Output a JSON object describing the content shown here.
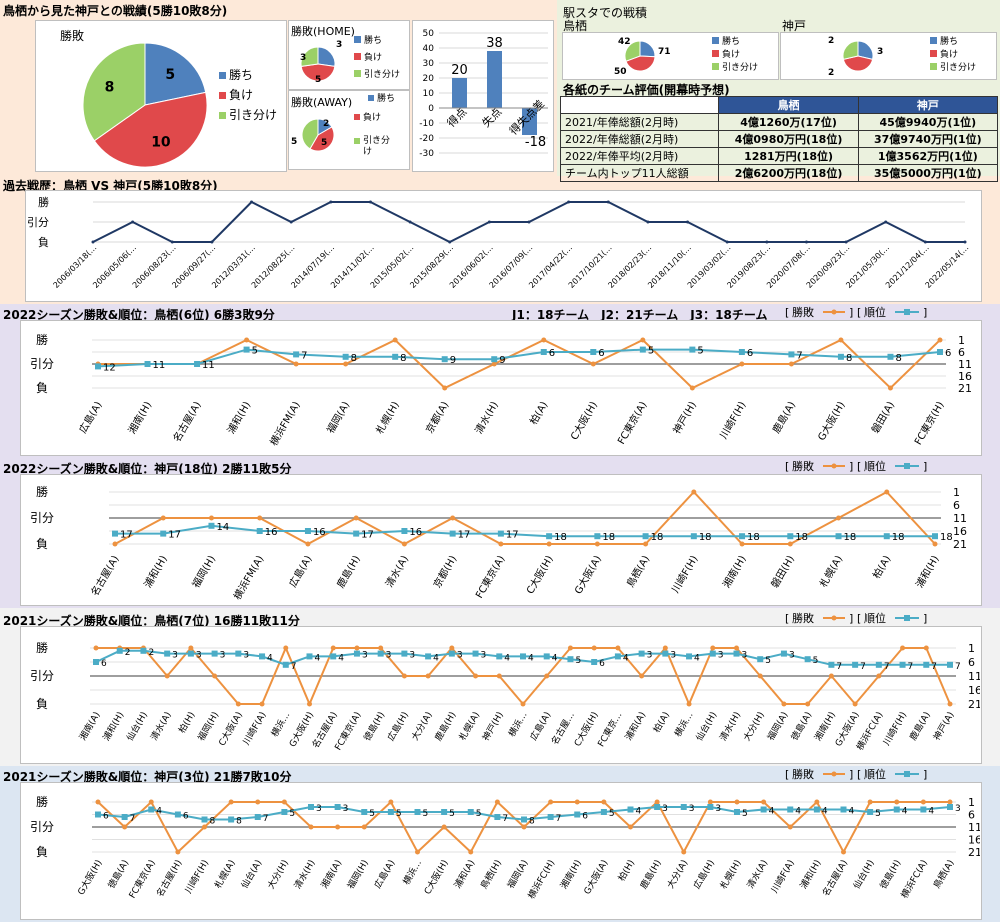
{
  "colors": {
    "win": "#4f81bd",
    "lose": "#e0494b",
    "draw": "#9bd067",
    "line_navy": "#1f3864",
    "result_orange": "#ed9240",
    "rank_teal": "#4bacc6",
    "bg_peach": "#fde9d9",
    "bg_lav": "#e4dff0",
    "bg_blue": "#dce6f2",
    "bg_gray": "#f2f2f2",
    "bg_green": "#ebf1de"
  },
  "top": {
    "title": "鳥栖から見た神戸との戦績(5勝10敗8分)",
    "main_pie": {
      "title": "勝敗",
      "values": [
        5,
        10,
        8
      ],
      "labels": [
        "勝ち",
        "負け",
        "引き分け"
      ]
    },
    "home_pie": {
      "title": "勝敗(HOME)",
      "values": [
        3,
        5,
        3
      ],
      "labels": [
        "勝ち",
        "負け",
        "引き分け"
      ]
    },
    "away_pie": {
      "title": "勝敗(AWAY)",
      "values": [
        2,
        5,
        5
      ],
      "labels": [
        "勝ち",
        "負け",
        "引き分け"
      ]
    },
    "goals_bar": {
      "categories": [
        "得点",
        "失点",
        "得失点差"
      ],
      "values": [
        20,
        38,
        -18
      ],
      "yticks": [
        "50",
        "40",
        "30",
        "20",
        "10",
        "0",
        "-10",
        "-20",
        "-30"
      ]
    }
  },
  "ekisuta": {
    "title": "駅スタでの戦積",
    "tosu": {
      "label": "鳥栖",
      "values": [
        42,
        71,
        50
      ]
    },
    "kobe": {
      "label": "神戸",
      "values": [
        2,
        3,
        2
      ]
    },
    "legend": [
      "勝ち",
      "負け",
      "引き分け"
    ]
  },
  "eval_table": {
    "title": "各紙のチーム評価(開幕時予想)",
    "headers": [
      "鳥栖",
      "神戸"
    ],
    "rows": [
      {
        "label": "2021/年俸総額(2月時)",
        "tosu": "4億1260万(17位)",
        "kobe": "45億9940万(1位)"
      },
      {
        "label": "2022/年俸総額(2月時)",
        "tosu": "4億0980万円(18位)",
        "kobe": "37億9740万円(1位)"
      },
      {
        "label": "2022/年俸平均(2月時)",
        "tosu": "1281万円(18位)",
        "kobe": "1億3562万円(1位)"
      },
      {
        "label": "チーム内トップ11人総額",
        "tosu": "2億6200万円(18位)",
        "kobe": "35億5000万円(1位)"
      }
    ]
  },
  "history": {
    "title": "過去戦歴：鳥栖 VS 神戸(5勝10敗8分)",
    "ylabels": [
      "勝",
      "引分",
      "負"
    ],
    "dates": [
      "2006/03/18(…",
      "2006/05/06(…",
      "2006/08/23(…",
      "2006/09/27(…",
      "2012/03/31(…",
      "2012/08/25(…",
      "2014/07/19(…",
      "2014/11/02(…",
      "2015/05/02(…",
      "2015/08/29(…",
      "2016/06/02(…",
      "2016/07/09(…",
      "2017/04/22(…",
      "2017/10/21(…",
      "2018/02/23(…",
      "2018/11/10(…",
      "2019/03/02(…",
      "2019/08/23(…",
      "2020/07/08(…",
      "2020/09/23(…",
      "2021/05/30(…",
      "2021/12/04(…",
      "2022/05/14(…"
    ],
    "results": [
      0,
      0.5,
      0,
      0,
      1,
      0.5,
      1,
      1,
      0.5,
      0,
      0.5,
      0.5,
      1,
      1,
      0.5,
      0.5,
      0,
      0,
      0,
      0,
      0.5,
      0,
      0
    ]
  },
  "legend_labels": {
    "result": "勝敗",
    "rank": "順位"
  },
  "season_charts": [
    {
      "title": "2022シーズン勝敗&順位：鳥栖(6位) 6勝3敗9分",
      "note": "J1：18チーム　J2：21チーム　J3：18チーム",
      "ylabels": [
        "勝",
        "引分",
        "負"
      ],
      "right_ticks": [
        "1",
        "6",
        "11",
        "16",
        "21"
      ],
      "matches": [
        "広島(A)",
        "湘南(H)",
        "名古屋(A)",
        "浦和(H)",
        "横浜FM(A)",
        "福岡(A)",
        "札幌(H)",
        "京都(A)",
        "清水(H)",
        "柏(A)",
        "C大阪(H)",
        "FC東京(A)",
        "神戸(H)",
        "川崎F(H)",
        "鹿島(A)",
        "G大阪(H)",
        "磐田(A)",
        "FC東京(H)"
      ],
      "results": [
        0.5,
        0.5,
        0.5,
        1,
        0.5,
        0.5,
        1,
        0,
        0.5,
        1,
        0.5,
        1,
        0,
        0.5,
        0.5,
        1,
        0,
        1
      ],
      "ranks": [
        12,
        11,
        11,
        5,
        7,
        8,
        8,
        9,
        9,
        6,
        6,
        5,
        5,
        6,
        7,
        8,
        8,
        6
      ]
    },
    {
      "title": "2022シーズン勝敗&順位：神戸(18位) 2勝11敗5分",
      "note": "",
      "ylabels": [
        "勝",
        "引分",
        "負"
      ],
      "right_ticks": [
        "1",
        "6",
        "11",
        "16",
        "21"
      ],
      "matches": [
        "名古屋(A)",
        "浦和(H)",
        "福岡(H)",
        "横浜FM(A)",
        "広島(A)",
        "鹿島(H)",
        "清水(A)",
        "京都(H)",
        "FC東京(A)",
        "C大阪(H)",
        "G大阪(A)",
        "鳥栖(A)",
        "川崎F(H)",
        "湘南(H)",
        "磐田(H)",
        "札幌(A)",
        "柏(A)",
        "浦和(H)"
      ],
      "results": [
        0,
        0.5,
        0.5,
        0.5,
        0,
        0.5,
        0,
        0.5,
        0,
        0,
        0,
        0,
        1,
        0,
        0,
        0.5,
        1,
        0,
        0
      ],
      "ranks": [
        17,
        17,
        14,
        16,
        16,
        17,
        16,
        17,
        17,
        18,
        18,
        18,
        18,
        18,
        18,
        18,
        18,
        18
      ]
    },
    {
      "title": "2021シーズン勝敗&順位：鳥栖(7位) 16勝11敗11分",
      "note": "",
      "ylabels": [
        "勝",
        "引分",
        "負"
      ],
      "right_ticks": [
        "1",
        "6",
        "11",
        "16",
        "21"
      ],
      "matches": [
        "湘南(A)",
        "浦和(H)",
        "仙台(H)",
        "清水(A)",
        "柏(H)",
        "福岡(H)",
        "C大阪(A)",
        "川崎F(A)",
        "横浜…",
        "G大阪(H)",
        "名古屋(A)",
        "FC東京(A)",
        "徳島(H)",
        "広島(H)",
        "大分(A)",
        "鹿島(H)",
        "札幌(A)",
        "神戸(H)",
        "横浜…",
        "広島(A)",
        "名古屋…",
        "C大阪(H)",
        "FC東京…",
        "浦和(A)",
        "柏(A)",
        "横浜…",
        "仙台(H)",
        "清水(H)",
        "大分(H)",
        "福岡(A)",
        "徳島(A)",
        "湘南(H)",
        "G大阪(A)",
        "横浜FC(A)",
        "川崎F(H)",
        "鹿島(A)",
        "神戸(A)"
      ],
      "results": [
        1,
        1,
        1,
        0.5,
        1,
        0.5,
        0,
        0,
        1,
        0,
        1,
        1,
        1,
        0.5,
        0.5,
        1,
        0.5,
        0.5,
        0,
        0.5,
        1,
        1,
        1,
        0.5,
        1,
        0,
        1,
        1,
        0.5,
        0,
        0,
        0.5,
        0,
        0.5,
        1,
        1,
        0
      ],
      "ranks": [
        6,
        2,
        2,
        3,
        3,
        3,
        3,
        4,
        7,
        4,
        4,
        3,
        3,
        3,
        4,
        3,
        3,
        4,
        4,
        4,
        5,
        6,
        4,
        3,
        3,
        4,
        3,
        3,
        5,
        3,
        5,
        7,
        7,
        7,
        7,
        7,
        7,
        7,
        7
      ]
    },
    {
      "title": "2021シーズン勝敗&順位：神戸(3位) 21勝7敗10分",
      "note": "",
      "ylabels": [
        "勝",
        "引分",
        "負"
      ],
      "right_ticks": [
        "1",
        "6",
        "11",
        "16",
        "21"
      ],
      "matches": [
        "G大阪(H)",
        "徳島(A)",
        "FC東京(A)",
        "名古屋(H)",
        "川崎F(H)",
        "札幌(A)",
        "仙台(A)",
        "大分(H)",
        "清水(H)",
        "湘南(A)",
        "福岡(H)",
        "広島(A)",
        "横浜…",
        "C大阪(H)",
        "浦和(A)",
        "鳥栖(H)",
        "福岡(A)",
        "横浜FC(H)",
        "湘南(H)",
        "G大阪(A)",
        "柏(H)",
        "鹿島(H)",
        "大分(A)",
        "広島(H)",
        "札幌(H)",
        "清水(A)",
        "川崎F(A)",
        "浦和(H)",
        "名古屋(A)",
        "仙台(H)",
        "徳島(H)",
        "横浜FC(A)",
        "鳥栖(A)"
      ],
      "results": [
        1,
        0.5,
        1,
        0,
        0.5,
        1,
        1,
        1,
        0.5,
        0.5,
        0.5,
        1,
        0,
        0.5,
        0,
        1,
        0.5,
        1,
        1,
        1,
        0.5,
        1,
        0,
        1,
        1,
        1,
        0.5,
        1,
        0,
        1,
        1,
        1,
        1,
        0.5,
        1,
        0,
        1
      ],
      "ranks": [
        6,
        7,
        4,
        6,
        8,
        8,
        7,
        5,
        3,
        3,
        5,
        5,
        5,
        5,
        5,
        7,
        8,
        7,
        6,
        5,
        4,
        3,
        3,
        3,
        5,
        4,
        4,
        4,
        4,
        5,
        4,
        4,
        3,
        3,
        3,
        3,
        3,
        3,
        3,
        3,
        3
      ]
    }
  ]
}
